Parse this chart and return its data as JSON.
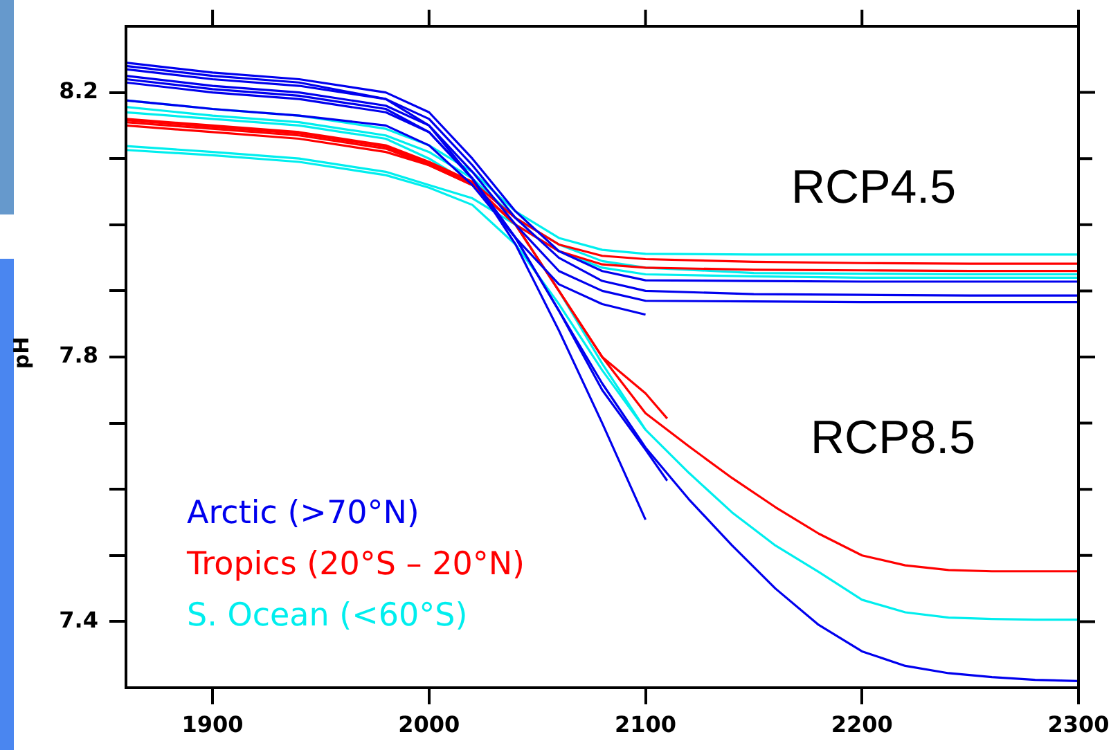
{
  "chart_data": {
    "type": "line",
    "ylabel": "pH",
    "legend": "bottom left",
    "grid": false,
    "xlim": [
      1860,
      2300
    ],
    "xticks": [
      1900,
      2000,
      2100,
      2200,
      2300
    ],
    "ylim": [
      7.3,
      8.3
    ],
    "yticks": [
      7.4,
      {
        "value": 7.5,
        "label": null
      },
      {
        "value": 7.6,
        "label": null
      },
      {
        "value": 7.7,
        "label": null
      },
      7.8,
      {
        "value": 7.9,
        "label": null
      },
      {
        "value": 8.0,
        "label": null
      },
      {
        "value": 8.1,
        "label": null
      },
      8.2
    ],
    "annotations": [
      "RCP4.5",
      "RCP8.5"
    ],
    "series": [
      {
        "name": "Arctic (>70°N)",
        "color": "#0000ee",
        "x": [
          1860,
          1900,
          1940,
          1980,
          2000,
          2020,
          2040,
          2060,
          2080,
          2100,
          2150,
          2200,
          2250,
          2300
        ],
        "values": [
          8.245,
          8.23,
          8.22,
          8.2,
          8.17,
          8.1,
          8.02,
          7.96,
          7.93,
          7.916,
          7.915,
          7.914,
          7.914,
          7.914
        ]
      },
      {
        "color": "#0000ee",
        "x": [
          1860,
          1900,
          1940,
          1980,
          2000,
          2020,
          2040,
          2060,
          2080,
          2100,
          2150,
          2200,
          2250,
          2300
        ],
        "values": [
          8.235,
          8.22,
          8.21,
          8.19,
          8.16,
          8.09,
          8.01,
          7.95,
          7.915,
          7.9,
          7.895,
          7.894,
          7.893,
          7.893
        ]
      },
      {
        "color": "#0000ee",
        "x": [
          1860,
          1900,
          1940,
          1980,
          2000,
          2020,
          2040,
          2060,
          2080,
          2100,
          2150,
          2200,
          2250,
          2300
        ],
        "values": [
          8.225,
          8.21,
          8.2,
          8.18,
          8.15,
          8.08,
          8.0,
          7.93,
          7.9,
          7.885,
          7.884,
          7.883,
          7.883,
          7.883
        ]
      },
      {
        "color": "#0000ee",
        "x": [
          1860,
          1900,
          1940,
          1980,
          2000,
          2020,
          2040,
          2060,
          2080,
          2100
        ],
        "values": [
          8.215,
          8.2,
          8.19,
          8.17,
          8.14,
          8.07,
          7.98,
          7.91,
          7.88,
          7.864
        ]
      },
      {
        "color": "#0000ee",
        "x": [
          1860,
          1900,
          1940,
          1980,
          2000,
          2020,
          2040,
          2060,
          2080,
          2100
        ],
        "values": [
          8.24,
          8.225,
          8.215,
          8.19,
          8.15,
          8.07,
          7.97,
          7.84,
          7.7,
          7.554
        ]
      },
      {
        "color": "#0000ee",
        "x": [
          1860,
          1900,
          1940,
          1980,
          2000,
          2020,
          2040,
          2060,
          2080,
          2100,
          2110
        ],
        "values": [
          8.188,
          8.175,
          8.165,
          8.15,
          8.12,
          8.06,
          7.98,
          7.87,
          7.75,
          7.66,
          7.613
        ]
      },
      {
        "color": "#0000ee",
        "x": [
          1860,
          1900,
          1940,
          1980,
          2000,
          2020,
          2040,
          2060,
          2080,
          2100,
          2120,
          2140,
          2160,
          2180,
          2200,
          2220,
          2240,
          2260,
          2280,
          2300
        ],
        "values": [
          8.22,
          8.205,
          8.195,
          8.175,
          8.14,
          8.07,
          7.98,
          7.87,
          7.76,
          7.663,
          7.585,
          7.515,
          7.45,
          7.395,
          7.355,
          7.333,
          7.322,
          7.316,
          7.312,
          7.31
        ]
      },
      {
        "name": "Tropics (20°S – 20°N)",
        "color": "#ff0000",
        "x": [
          1860,
          1900,
          1940,
          1980,
          2000,
          2020,
          2040,
          2060,
          2080,
          2100,
          2150,
          2200,
          2250,
          2300
        ],
        "values": [
          8.16,
          8.15,
          8.14,
          8.12,
          8.095,
          8.065,
          8.01,
          7.97,
          7.953,
          7.948,
          7.944,
          7.942,
          7.941,
          7.941
        ]
      },
      {
        "color": "#ff0000",
        "x": [
          1860,
          1900,
          1940,
          1980,
          2000,
          2020,
          2040,
          2060,
          2080,
          2100,
          2150,
          2200,
          2250,
          2300
        ],
        "values": [
          8.15,
          8.14,
          8.13,
          8.11,
          8.09,
          8.06,
          8.0,
          7.96,
          7.94,
          7.935,
          7.932,
          7.931,
          7.93,
          7.93
        ]
      },
      {
        "color": "#ff0000",
        "x": [
          1860,
          1900,
          1940,
          1980,
          2000,
          2020,
          2040,
          2060,
          2080,
          2100,
          2110
        ],
        "values": [
          8.155,
          8.145,
          8.135,
          8.115,
          8.09,
          8.06,
          8.0,
          7.9,
          7.8,
          7.745,
          7.707
        ]
      },
      {
        "color": "#ff0000",
        "x": [
          1860,
          1900,
          1940,
          1980,
          2000,
          2020,
          2040,
          2060,
          2080,
          2100,
          2120,
          2140,
          2160,
          2180,
          2200,
          2220,
          2240,
          2260,
          2280,
          2300
        ],
        "values": [
          8.158,
          8.148,
          8.138,
          8.118,
          8.092,
          8.062,
          8.0,
          7.9,
          7.8,
          7.715,
          7.665,
          7.617,
          7.573,
          7.533,
          7.5,
          7.485,
          7.478,
          7.476,
          7.476,
          7.476
        ]
      },
      {
        "name": "S. Ocean (<60°S)",
        "color": "#00eeee",
        "x": [
          1860,
          1900,
          1940,
          1980,
          2000,
          2020,
          2040,
          2060,
          2080,
          2100,
          2150,
          2200,
          2250,
          2300
        ],
        "values": [
          8.188,
          8.175,
          8.165,
          8.145,
          8.12,
          8.08,
          8.02,
          7.98,
          7.962,
          7.956,
          7.955,
          7.955,
          7.955,
          7.955
        ]
      },
      {
        "color": "#00eeee",
        "x": [
          1860,
          1900,
          1940,
          1980,
          2000,
          2020,
          2040,
          2060,
          2080,
          2100,
          2150,
          2200,
          2250,
          2300
        ],
        "values": [
          8.119,
          8.11,
          8.1,
          8.08,
          8.06,
          8.04,
          8.0,
          7.96,
          7.935,
          7.925,
          7.922,
          7.92,
          7.92,
          7.92
        ]
      },
      {
        "color": "#00eeee",
        "x": [
          1860,
          1900,
          1940,
          1980,
          2000,
          2020,
          2040,
          2060,
          2080,
          2100,
          2150,
          2200,
          2250,
          2300
        ],
        "values": [
          8.178,
          8.165,
          8.155,
          8.135,
          8.11,
          8.07,
          8.01,
          7.97,
          7.945,
          7.935,
          7.927,
          7.926,
          7.925,
          7.925
        ]
      },
      {
        "color": "#00eeee",
        "x": [
          1860,
          1900,
          1940,
          1980,
          2000,
          2020,
          2040,
          2060,
          2080,
          2100
        ],
        "values": [
          8.113,
          8.105,
          8.095,
          8.075,
          8.056,
          8.03,
          7.97,
          7.88,
          7.78,
          7.69
        ]
      },
      {
        "color": "#00eeee",
        "x": [
          1860,
          1900,
          1940,
          1980,
          2000,
          2020,
          2040,
          2060,
          2080,
          2100,
          2120,
          2140,
          2160,
          2180,
          2200,
          2220,
          2240,
          2260,
          2280,
          2300
        ],
        "values": [
          8.17,
          8.16,
          8.15,
          8.13,
          8.1,
          8.06,
          8.0,
          7.9,
          7.79,
          7.69,
          7.625,
          7.565,
          7.515,
          7.475,
          7.433,
          7.414,
          7.406,
          7.404,
          7.403,
          7.403
        ]
      }
    ]
  }
}
